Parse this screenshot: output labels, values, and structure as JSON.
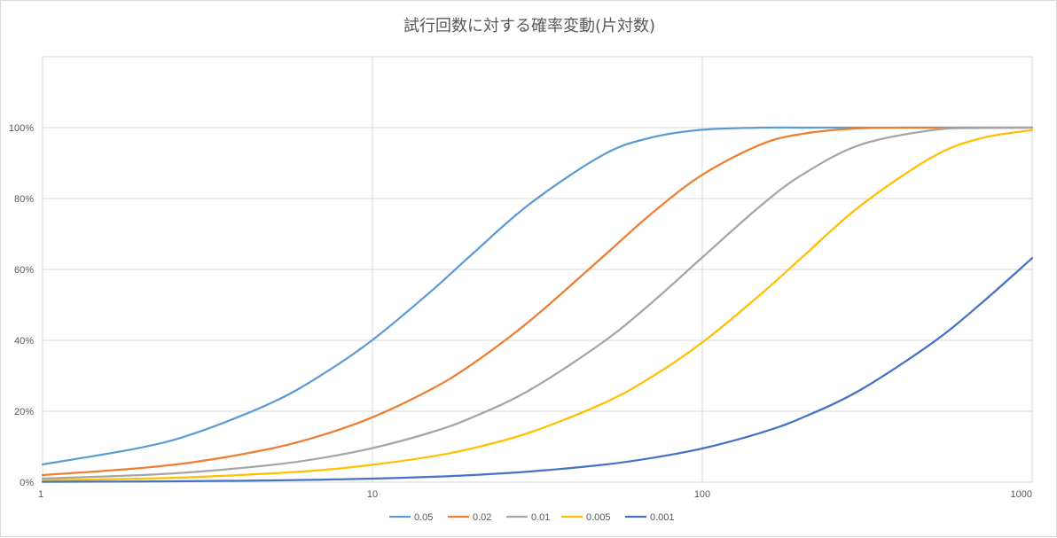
{
  "chart_data": {
    "type": "line",
    "title": "試行回数に対する確率変動(片対数)",
    "xlabel": "",
    "ylabel": "",
    "x_scale": "log",
    "xlim": [
      1,
      1000
    ],
    "ylim": [
      0,
      1.2
    ],
    "x_ticks": [
      1,
      10,
      100,
      1000
    ],
    "x_tick_labels": [
      "1",
      "10",
      "100",
      "1000"
    ],
    "y_ticks": [
      0,
      0.2,
      0.4,
      0.6,
      0.8,
      1.0
    ],
    "y_tick_labels": [
      "0%",
      "20%",
      "40%",
      "60%",
      "80%",
      "100%"
    ],
    "grid": true,
    "legend_position": "bottom",
    "x": [
      1,
      2,
      3,
      5,
      7,
      10,
      15,
      20,
      30,
      50,
      70,
      100,
      150,
      200,
      300,
      500,
      700,
      1000
    ],
    "series": [
      {
        "name": "0.05",
        "color": "#5b9bd5",
        "values": [
          0.05,
          0.098,
          0.143,
          0.226,
          0.302,
          0.401,
          0.537,
          0.642,
          0.785,
          0.923,
          0.972,
          0.994,
          1.0,
          1.0,
          1.0,
          1.0,
          1.0,
          1.0
        ]
      },
      {
        "name": "0.02",
        "color": "#ed7d31",
        "values": [
          0.02,
          0.04,
          0.059,
          0.096,
          0.132,
          0.183,
          0.261,
          0.332,
          0.455,
          0.636,
          0.757,
          0.867,
          0.952,
          0.982,
          0.998,
          1.0,
          1.0,
          1.0
        ]
      },
      {
        "name": "0.01",
        "color": "#a5a5a5",
        "values": [
          0.01,
          0.02,
          0.03,
          0.049,
          0.068,
          0.096,
          0.14,
          0.182,
          0.26,
          0.395,
          0.505,
          0.634,
          0.779,
          0.866,
          0.951,
          0.993,
          0.999,
          1.0
        ]
      },
      {
        "name": "0.005",
        "color": "#ffc000",
        "values": [
          0.005,
          0.01,
          0.015,
          0.025,
          0.034,
          0.049,
          0.072,
          0.095,
          0.14,
          0.222,
          0.296,
          0.394,
          0.529,
          0.633,
          0.778,
          0.918,
          0.97,
          0.993
        ]
      },
      {
        "name": "0.001",
        "color": "#4472c4",
        "values": [
          0.001,
          0.002,
          0.003,
          0.005,
          0.007,
          0.01,
          0.015,
          0.02,
          0.03,
          0.049,
          0.068,
          0.095,
          0.139,
          0.181,
          0.259,
          0.394,
          0.504,
          0.632
        ]
      }
    ]
  }
}
